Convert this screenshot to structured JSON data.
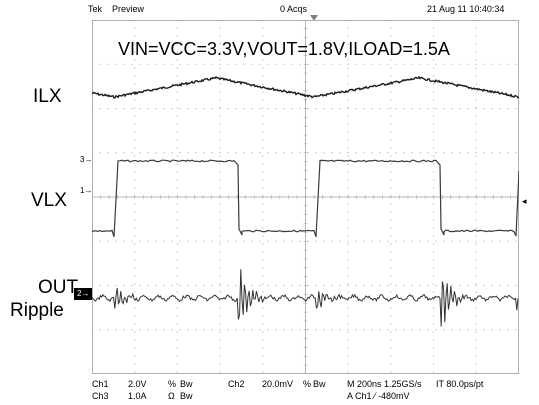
{
  "status_bar": {
    "brand": "Tek",
    "mode": "Preview",
    "acqs": "0 Acqs",
    "datetime": "21 Aug 11 10:40:34"
  },
  "annotation": "VIN=VCC=3.3V,VOUT=1.8V,ILOAD=1.5A",
  "side_labels": {
    "ilx": "ILX",
    "vlx": "VLX",
    "out_line1": "OUT",
    "out_line2": "Ripple"
  },
  "markers": {
    "ch3": "3",
    "ch1": "1",
    "ch2": "2"
  },
  "footer": {
    "ch1_label": "Ch1",
    "ch1_scale": "2.0V",
    "ch1_sym1": "%",
    "ch1_bw": "Bw",
    "ch2_label": "Ch2",
    "ch2_scale": "20.0mV",
    "ch2_sym": "%",
    "ch2_bw": "Bw",
    "ch3_label": "Ch3",
    "ch3_scale": "1.0A",
    "ch3_sym": "Ω",
    "ch3_bw": "Bw",
    "timebase": "M 200ns 1.25GS/s",
    "record": "IT 80.0ps/pt",
    "trigger": "A  Ch1  ⁄  -480mV"
  }
}
